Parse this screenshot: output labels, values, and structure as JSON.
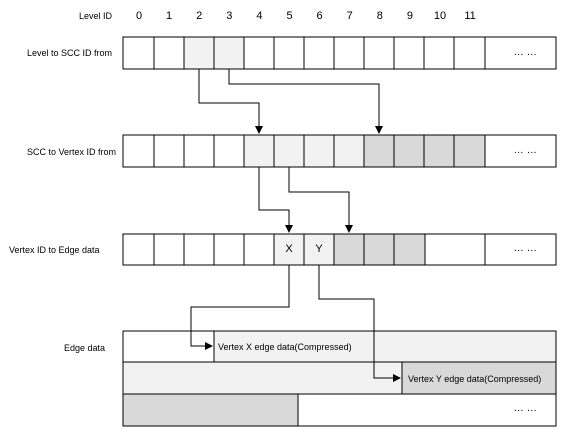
{
  "header": {
    "title": "Level ID"
  },
  "level_ids": [
    "0",
    "1",
    "2",
    "3",
    "4",
    "5",
    "6",
    "7",
    "8",
    "9",
    "10",
    "11"
  ],
  "rows": {
    "level_to_scc": {
      "label": "Level to SCC ID from",
      "more": "... ..."
    },
    "scc_to_vertex": {
      "label": "SCC to Vertex ID from",
      "more": "... ..."
    },
    "vertex_to_edge": {
      "label": "Vertex ID to Edge  data",
      "more": "... ...",
      "cell_x": "X",
      "cell_y": "Y"
    },
    "edge_data": {
      "label": "Edge data",
      "vertex_x": "Vertex X edge data(Compressed)",
      "vertex_y": "Vertex Y edge data(Compressed)",
      "more": "... ..."
    }
  },
  "colors": {
    "stroke": "#000000",
    "light_fill": "#f2f2f2",
    "dark_fill": "#d9d9d9",
    "white": "#ffffff"
  }
}
